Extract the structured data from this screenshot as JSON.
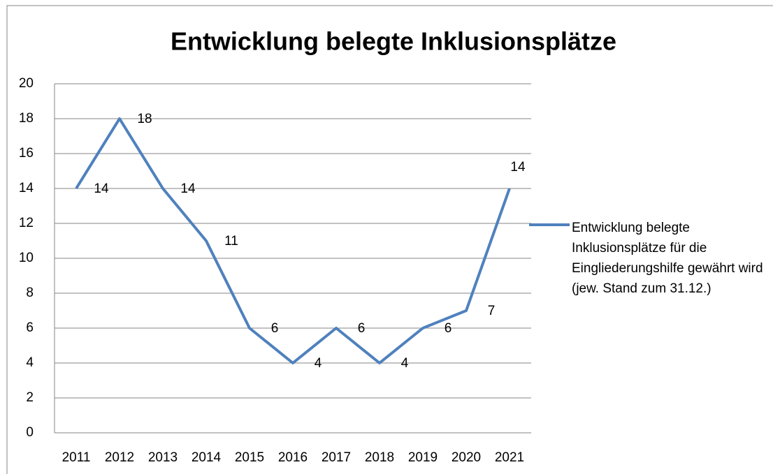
{
  "chart_data": {
    "type": "line",
    "title": "Entwicklung belegte Inklusionsplätze",
    "categories": [
      "2011",
      "2012",
      "2013",
      "2014",
      "2015",
      "2016",
      "2017",
      "2018",
      "2019",
      "2020",
      "2021"
    ],
    "series": [
      {
        "name": "Entwicklung belegte Inklusionsplätze für die Eingliederungshilfe gewährt wird (jew. Stand zum 31.12.)",
        "color": "#4f81bd",
        "values": [
          14,
          18,
          14,
          11,
          6,
          4,
          6,
          4,
          6,
          7,
          14
        ]
      }
    ],
    "ylim": [
      0,
      20
    ],
    "yticks": [
      0,
      2,
      4,
      6,
      8,
      10,
      12,
      14,
      16,
      18,
      20
    ],
    "grid": true,
    "legend": "right"
  }
}
